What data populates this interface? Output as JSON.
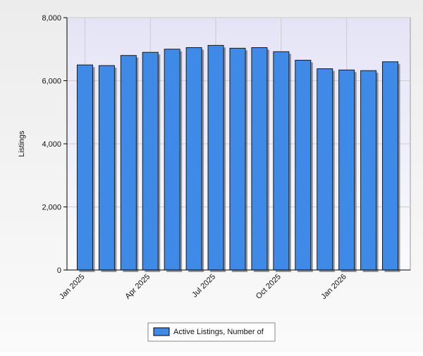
{
  "chart_data": {
    "type": "bar",
    "y_label": "Listings",
    "categories": [
      "Jan 2025",
      null,
      null,
      "Apr 2025",
      null,
      null,
      "Jul 2025",
      null,
      null,
      "Oct 2025",
      null,
      null,
      "Jan 2026",
      null,
      null
    ],
    "series": [
      {
        "name": "Active Listings, Number of",
        "color": "#3f8ae6",
        "values": [
          6500,
          6480,
          6800,
          6900,
          7000,
          7050,
          7120,
          7030,
          7050,
          6920,
          6650,
          6380,
          6340,
          6320,
          6600
        ]
      }
    ],
    "ylim": [
      0,
      8000
    ],
    "yticks": [
      0,
      {
        "value": 2000,
        "label": "2,000"
      },
      {
        "value": 4000,
        "label": "4,000"
      },
      {
        "value": 6000,
        "label": "6,000"
      },
      {
        "value": 8000,
        "label": "8,000"
      }
    ],
    "grid": true
  }
}
